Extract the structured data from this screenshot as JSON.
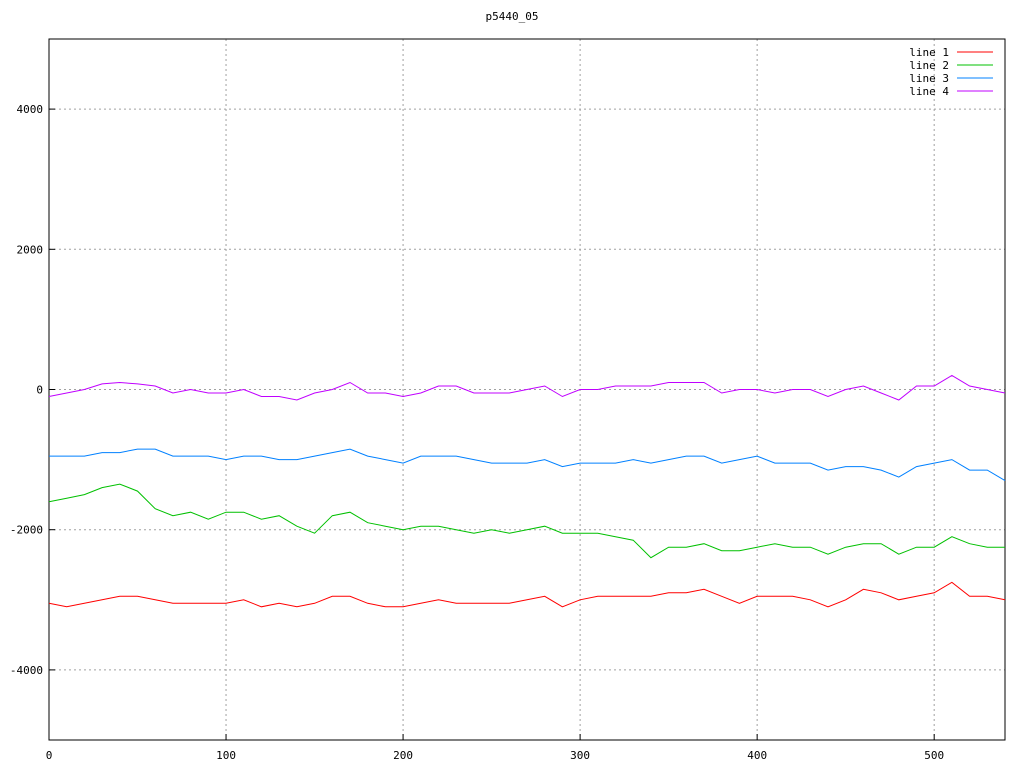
{
  "chart_data": {
    "type": "line",
    "title": "p5440_05",
    "x": [
      0,
      10,
      20,
      30,
      40,
      50,
      60,
      70,
      80,
      90,
      100,
      110,
      120,
      130,
      140,
      150,
      160,
      170,
      180,
      190,
      200,
      210,
      220,
      230,
      240,
      250,
      260,
      270,
      280,
      290,
      300,
      310,
      320,
      330,
      340,
      350,
      360,
      370,
      380,
      390,
      400,
      410,
      420,
      430,
      440,
      450,
      460,
      470,
      480,
      490,
      500,
      510,
      520,
      530,
      540
    ],
    "series": [
      {
        "name": "line 1",
        "color": "#ff0000",
        "values": [
          -3050,
          -3100,
          -3050,
          -3000,
          -2950,
          -2950,
          -3000,
          -3050,
          -3050,
          -3050,
          -3050,
          -3000,
          -3100,
          -3050,
          -3100,
          -3050,
          -2950,
          -2950,
          -3050,
          -3100,
          -3100,
          -3050,
          -3000,
          -3050,
          -3050,
          -3050,
          -3050,
          -3000,
          -2950,
          -3100,
          -3000,
          -2950,
          -2950,
          -2950,
          -2950,
          -2900,
          -2900,
          -2850,
          -2950,
          -3050,
          -2950,
          -2950,
          -2950,
          -3000,
          -3100,
          -3000,
          -2850,
          -2900,
          -3000,
          -2950,
          -2900,
          -2750,
          -2950,
          -2950,
          -3000
        ]
      },
      {
        "name": "line 2",
        "color": "#00c000",
        "values": [
          -1600,
          -1550,
          -1500,
          -1400,
          -1350,
          -1450,
          -1700,
          -1800,
          -1750,
          -1850,
          -1750,
          -1750,
          -1850,
          -1800,
          -1950,
          -2050,
          -1800,
          -1750,
          -1900,
          -1950,
          -2000,
          -1950,
          -1950,
          -2000,
          -2050,
          -2000,
          -2050,
          -2000,
          -1950,
          -2050,
          -2050,
          -2050,
          -2100,
          -2150,
          -2400,
          -2250,
          -2250,
          -2200,
          -2300,
          -2300,
          -2250,
          -2200,
          -2250,
          -2250,
          -2350,
          -2250,
          -2200,
          -2200,
          -2350,
          -2250,
          -2250,
          -2100,
          -2200,
          -2250,
          -2250
        ]
      },
      {
        "name": "line 3",
        "color": "#0080ff",
        "values": [
          -950,
          -950,
          -950,
          -900,
          -900,
          -850,
          -850,
          -950,
          -950,
          -950,
          -1000,
          -950,
          -950,
          -1000,
          -1000,
          -950,
          -900,
          -850,
          -950,
          -1000,
          -1050,
          -950,
          -950,
          -950,
          -1000,
          -1050,
          -1050,
          -1050,
          -1000,
          -1100,
          -1050,
          -1050,
          -1050,
          -1000,
          -1050,
          -1000,
          -950,
          -950,
          -1050,
          -1000,
          -950,
          -1050,
          -1050,
          -1050,
          -1150,
          -1100,
          -1100,
          -1150,
          -1250,
          -1100,
          -1050,
          -1000,
          -1150,
          -1150,
          -1300
        ]
      },
      {
        "name": "line 4",
        "color": "#c000ff",
        "values": [
          -100,
          -50,
          0,
          80,
          100,
          80,
          50,
          -50,
          0,
          -50,
          -50,
          0,
          -100,
          -100,
          -150,
          -50,
          0,
          100,
          -50,
          -50,
          -100,
          -50,
          50,
          50,
          -50,
          -50,
          -50,
          0,
          50,
          -100,
          0,
          0,
          50,
          50,
          50,
          100,
          100,
          100,
          -50,
          0,
          0,
          -50,
          0,
          0,
          -100,
          0,
          50,
          -50,
          -150,
          50,
          50,
          200,
          50,
          0,
          -50
        ]
      }
    ],
    "xlim": [
      0,
      540
    ],
    "ylim": [
      -5000,
      5000
    ],
    "xticks": [
      0,
      100,
      200,
      300,
      400,
      500
    ],
    "yticks": [
      -4000,
      -2000,
      0,
      2000,
      4000
    ],
    "grid": true,
    "legend": "top-right"
  }
}
